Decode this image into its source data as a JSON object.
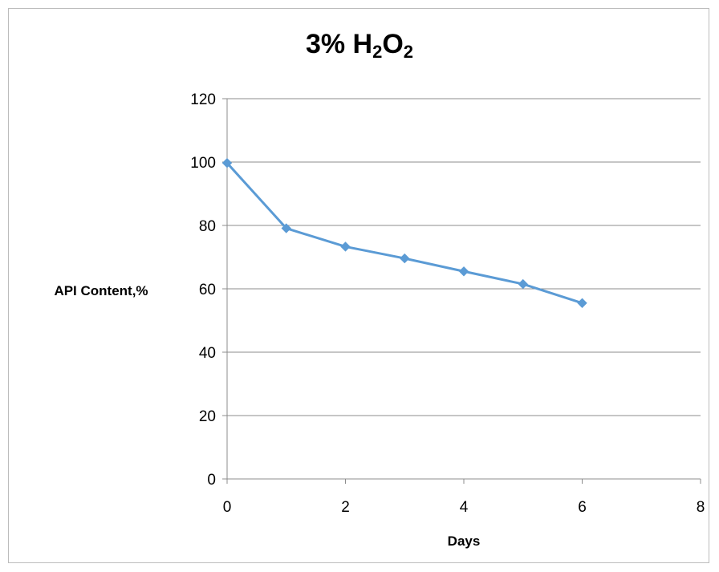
{
  "chart_data": {
    "type": "line",
    "title_main": "3% H",
    "title_sub1": "2",
    "title_mid": "O",
    "title_sub2": "2",
    "xlabel": "Days",
    "ylabel": "API Content,%",
    "xlim": [
      0,
      8
    ],
    "ylim": [
      0,
      120
    ],
    "xticks": [
      0,
      2,
      4,
      6,
      8
    ],
    "yticks": [
      0,
      20,
      40,
      60,
      80,
      100,
      120
    ],
    "grid": "horizontal",
    "legend": "none",
    "series": [
      {
        "color": "#5b9bd5",
        "marker": "diamond",
        "points": [
          {
            "x": 0,
            "y": 99.7
          },
          {
            "x": 1,
            "y": 79.1
          },
          {
            "x": 2,
            "y": 73.3
          },
          {
            "x": 3,
            "y": 69.6
          },
          {
            "x": 4,
            "y": 65.5
          },
          {
            "x": 5,
            "y": 61.5
          },
          {
            "x": 6,
            "y": 55.5
          }
        ]
      }
    ]
  }
}
